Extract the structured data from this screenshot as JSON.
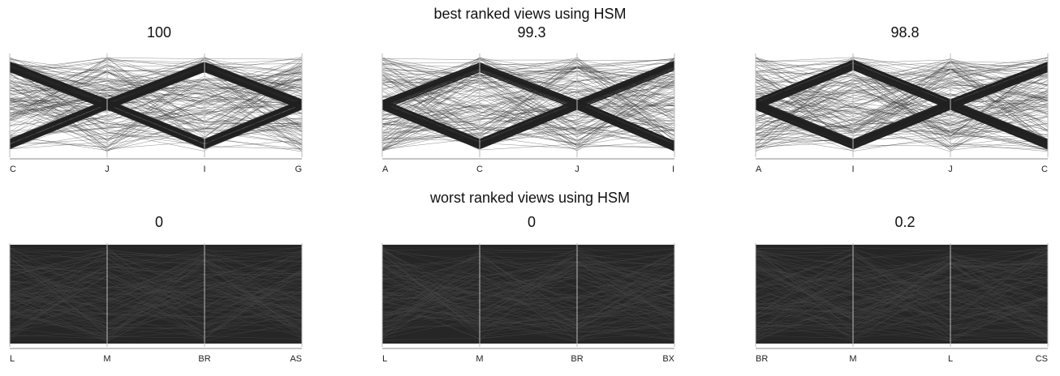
{
  "sections": {
    "best_title": "best ranked views using HSM",
    "worst_title": "worst ranked views using HSM"
  },
  "chart_data": [
    {
      "type": "parallel-coordinates",
      "group": "best",
      "score": "100",
      "axes": [
        "C",
        "J",
        "I",
        "G"
      ],
      "pattern": "crossing",
      "bands": [
        [
          0.12,
          0.5,
          0.12,
          0.5
        ],
        [
          0.9,
          0.5,
          0.9,
          0.5
        ]
      ]
    },
    {
      "type": "parallel-coordinates",
      "group": "best",
      "score": "99.3",
      "axes": [
        "A",
        "C",
        "J",
        "I"
      ],
      "pattern": "crossing",
      "bands": [
        [
          0.5,
          0.12,
          0.5,
          0.1
        ],
        [
          0.5,
          0.9,
          0.5,
          0.92
        ]
      ]
    },
    {
      "type": "parallel-coordinates",
      "group": "best",
      "score": "98.8",
      "axes": [
        "A",
        "I",
        "J",
        "C"
      ],
      "pattern": "crossing",
      "bands": [
        [
          0.5,
          0.1,
          0.5,
          0.12
        ],
        [
          0.5,
          0.9,
          0.5,
          0.9
        ]
      ]
    },
    {
      "type": "parallel-coordinates",
      "group": "worst",
      "score": "0",
      "axes": [
        "L",
        "M",
        "BR",
        "AS"
      ],
      "pattern": "dense"
    },
    {
      "type": "parallel-coordinates",
      "group": "worst",
      "score": "0",
      "axes": [
        "L",
        "M",
        "BR",
        "BX"
      ],
      "pattern": "dense"
    },
    {
      "type": "parallel-coordinates",
      "group": "worst",
      "score": "0.2",
      "axes": [
        "BR",
        "M",
        "L",
        "CS"
      ],
      "pattern": "dense"
    }
  ]
}
